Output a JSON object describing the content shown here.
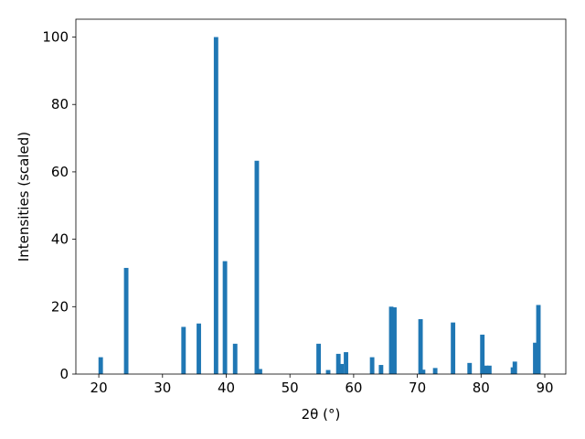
{
  "chart_data": {
    "type": "bar",
    "xlabel": "2θ (°)",
    "ylabel": "Intensities (scaled)",
    "color": "#1f77b4",
    "x": [
      20.3,
      24.3,
      33.3,
      35.7,
      38.4,
      39.8,
      41.4,
      44.8,
      45.3,
      54.5,
      56.0,
      57.6,
      58.1,
      58.8,
      62.9,
      64.3,
      65.9,
      66.4,
      70.5,
      70.9,
      72.8,
      75.6,
      78.2,
      80.2,
      80.8,
      81.3,
      85.0,
      85.3,
      88.5,
      89.0
    ],
    "values": [
      5,
      31.5,
      14,
      15,
      100,
      33.5,
      9,
      63.3,
      1.5,
      9,
      1.2,
      6,
      3,
      6.5,
      5,
      2.7,
      20,
      19.8,
      16.3,
      1.3,
      1.8,
      15.3,
      3.3,
      11.7,
      2.5,
      2.5,
      2,
      3.7,
      9.3,
      20.5
    ],
    "xlim": [
      16.4,
      93.3
    ],
    "ylim": [
      0,
      105.3
    ],
    "xticks": [
      20,
      30,
      40,
      50,
      60,
      70,
      80,
      90
    ],
    "yticks": [
      0,
      20,
      40,
      60,
      80,
      100
    ]
  }
}
